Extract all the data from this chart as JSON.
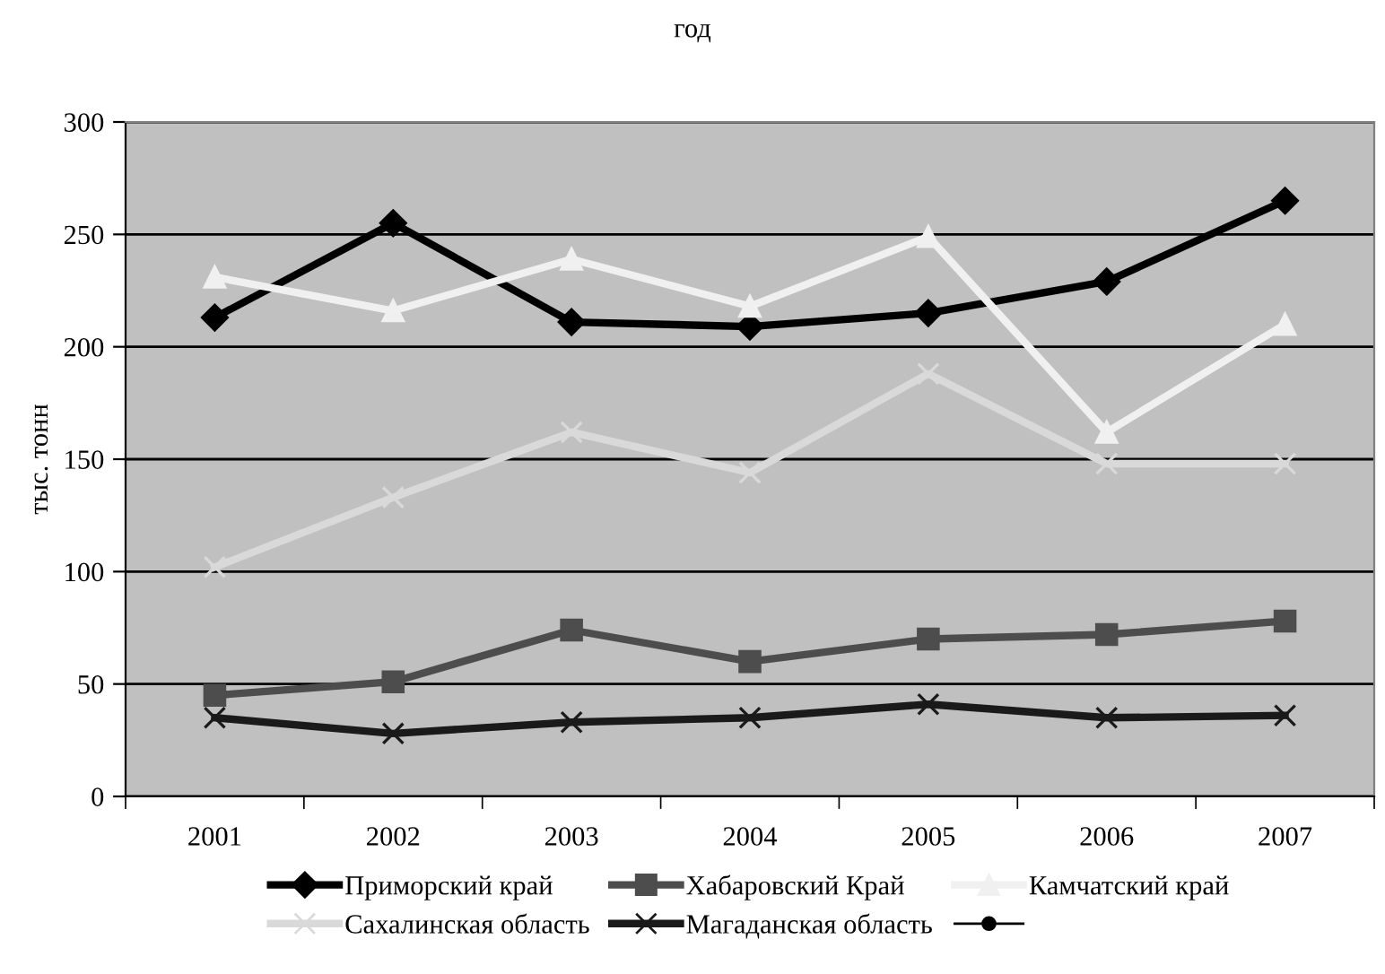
{
  "chart_data": {
    "type": "line",
    "title": "год",
    "ylabel": "тыс. тонн",
    "categories": [
      "2001",
      "2002",
      "2003",
      "2004",
      "2005",
      "2006",
      "2007"
    ],
    "series": [
      {
        "name": "Приморский край",
        "color": "#000000",
        "marker": "diamond",
        "values": [
          213,
          255,
          211,
          209,
          215,
          229,
          265
        ]
      },
      {
        "name": "Хабаровский Край",
        "color": "#4d4d4d",
        "marker": "square",
        "values": [
          45,
          51,
          74,
          60,
          70,
          72,
          78
        ]
      },
      {
        "name": "Камчатский край",
        "color": "#f0f0f0",
        "marker": "triangle",
        "values": [
          231,
          216,
          239,
          218,
          249,
          162,
          210
        ]
      },
      {
        "name": "Сахалинская область",
        "color": "#d9d9d9",
        "marker": "cross",
        "values": [
          102,
          133,
          162,
          144,
          188,
          148,
          148
        ]
      },
      {
        "name": "Магаданская область",
        "color": "#1a1a1a",
        "marker": "cross",
        "values": [
          35,
          28,
          33,
          35,
          41,
          35,
          36
        ]
      },
      {
        "color": "#000000",
        "marker": "circle",
        "values": [
          null,
          null,
          null,
          null,
          null,
          null,
          null
        ]
      }
    ],
    "ylim": [
      0,
      300
    ],
    "yticks": [
      0,
      50,
      100,
      150,
      200,
      250,
      300
    ],
    "grid": "y",
    "legend": "bottom"
  }
}
